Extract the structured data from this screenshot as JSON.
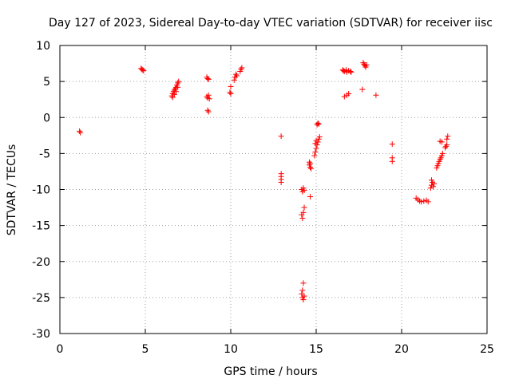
{
  "chart_data": {
    "type": "scatter",
    "title": "Day 127 of 2023, Sidereal Day-to-day VTEC variation (SDTVAR) for receiver iisc",
    "xlabel": "GPS time / hours",
    "ylabel": "SDTVAR / TECUs",
    "xlim": [
      0,
      25
    ],
    "ylim": [
      -30,
      10
    ],
    "xticks": [
      "0",
      "5",
      "10",
      "15",
      "20",
      "25"
    ],
    "yticks": [
      "10",
      "5",
      "0",
      "-5",
      "-10",
      "-15",
      "-20",
      "-25",
      "-30"
    ],
    "grid": true,
    "marker": "plus",
    "color": "#ff0000",
    "series": [
      {
        "name": "iisc",
        "points": [
          [
            1.15,
            -1.9
          ],
          [
            1.2,
            -2.1
          ],
          [
            4.75,
            6.8
          ],
          [
            4.8,
            6.7
          ],
          [
            4.85,
            6.6
          ],
          [
            4.9,
            6.5
          ],
          [
            6.55,
            3.0
          ],
          [
            6.6,
            3.3
          ],
          [
            6.65,
            3.6
          ],
          [
            6.7,
            3.8
          ],
          [
            6.75,
            4.0
          ],
          [
            6.8,
            4.2
          ],
          [
            6.85,
            4.5
          ],
          [
            6.9,
            4.8
          ],
          [
            6.95,
            5.0
          ],
          [
            6.6,
            2.8
          ],
          [
            6.7,
            3.2
          ],
          [
            6.8,
            3.6
          ],
          [
            6.9,
            4.2
          ],
          [
            8.6,
            5.6
          ],
          [
            8.65,
            5.4
          ],
          [
            8.7,
            5.3
          ],
          [
            8.6,
            2.9
          ],
          [
            8.65,
            2.7
          ],
          [
            8.7,
            3.1
          ],
          [
            8.75,
            2.6
          ],
          [
            8.65,
            1.0
          ],
          [
            8.7,
            0.8
          ],
          [
            9.95,
            3.5
          ],
          [
            10.0,
            3.3
          ],
          [
            10.0,
            4.3
          ],
          [
            10.2,
            5.2
          ],
          [
            10.25,
            5.6
          ],
          [
            10.3,
            6.0
          ],
          [
            10.35,
            5.8
          ],
          [
            10.55,
            6.4
          ],
          [
            10.6,
            6.7
          ],
          [
            10.65,
            6.9
          ],
          [
            12.95,
            -2.6
          ],
          [
            12.95,
            -7.8
          ],
          [
            12.95,
            -8.2
          ],
          [
            12.95,
            -8.6
          ],
          [
            12.95,
            -9.0
          ],
          [
            14.15,
            -10.0
          ],
          [
            14.2,
            -10.3
          ],
          [
            14.25,
            -9.8
          ],
          [
            14.3,
            -10.1
          ],
          [
            14.15,
            -13.5
          ],
          [
            14.2,
            -14.0
          ],
          [
            14.25,
            -13.2
          ],
          [
            14.3,
            -12.5
          ],
          [
            14.25,
            -23.0
          ],
          [
            14.2,
            -24.0
          ],
          [
            14.15,
            -24.5
          ],
          [
            14.2,
            -25.0
          ],
          [
            14.25,
            -25.3
          ],
          [
            14.3,
            -24.8
          ],
          [
            14.6,
            -6.2
          ],
          [
            14.6,
            -6.6
          ],
          [
            14.65,
            -6.9
          ],
          [
            14.7,
            -7.1
          ],
          [
            14.65,
            -6.4
          ],
          [
            14.65,
            -11.0
          ],
          [
            14.9,
            -5.3
          ],
          [
            14.95,
            -4.8
          ],
          [
            15.0,
            -4.3
          ],
          [
            15.05,
            -3.8
          ],
          [
            15.1,
            -3.4
          ],
          [
            15.15,
            -3.0
          ],
          [
            15.2,
            -2.7
          ],
          [
            14.95,
            -3.6
          ],
          [
            15.0,
            -3.2
          ],
          [
            15.05,
            -1.0
          ],
          [
            15.1,
            -0.8
          ],
          [
            15.15,
            -0.9
          ],
          [
            16.55,
            6.6
          ],
          [
            16.6,
            6.5
          ],
          [
            16.65,
            6.4
          ],
          [
            16.75,
            6.6
          ],
          [
            16.8,
            6.3
          ],
          [
            16.9,
            6.5
          ],
          [
            17.0,
            6.4
          ],
          [
            17.05,
            6.3
          ],
          [
            16.65,
            2.9
          ],
          [
            16.8,
            3.1
          ],
          [
            16.9,
            3.3
          ],
          [
            17.75,
            7.6
          ],
          [
            17.8,
            7.4
          ],
          [
            17.85,
            7.2
          ],
          [
            17.9,
            7.0
          ],
          [
            17.95,
            7.3
          ],
          [
            17.7,
            3.9
          ],
          [
            18.5,
            3.1
          ],
          [
            19.45,
            -3.7
          ],
          [
            19.45,
            -5.6
          ],
          [
            19.45,
            -6.1
          ],
          [
            20.85,
            -11.2
          ],
          [
            20.95,
            -11.4
          ],
          [
            21.05,
            -11.6
          ],
          [
            21.15,
            -11.7
          ],
          [
            21.3,
            -11.6
          ],
          [
            21.45,
            -11.5
          ],
          [
            21.55,
            -11.7
          ],
          [
            21.7,
            -9.8
          ],
          [
            21.75,
            -9.4
          ],
          [
            21.8,
            -9.0
          ],
          [
            21.85,
            -9.6
          ],
          [
            21.9,
            -9.2
          ],
          [
            21.75,
            -8.7
          ],
          [
            22.05,
            -7.0
          ],
          [
            22.1,
            -6.7
          ],
          [
            22.15,
            -6.4
          ],
          [
            22.2,
            -6.1
          ],
          [
            22.25,
            -5.8
          ],
          [
            22.3,
            -5.6
          ],
          [
            22.35,
            -5.3
          ],
          [
            22.4,
            -5.0
          ],
          [
            22.25,
            -3.3
          ],
          [
            22.35,
            -3.4
          ],
          [
            22.55,
            -4.2
          ],
          [
            22.6,
            -4.0
          ],
          [
            22.65,
            -3.8
          ],
          [
            22.65,
            -3.0
          ],
          [
            22.7,
            -2.6
          ]
        ]
      }
    ]
  }
}
